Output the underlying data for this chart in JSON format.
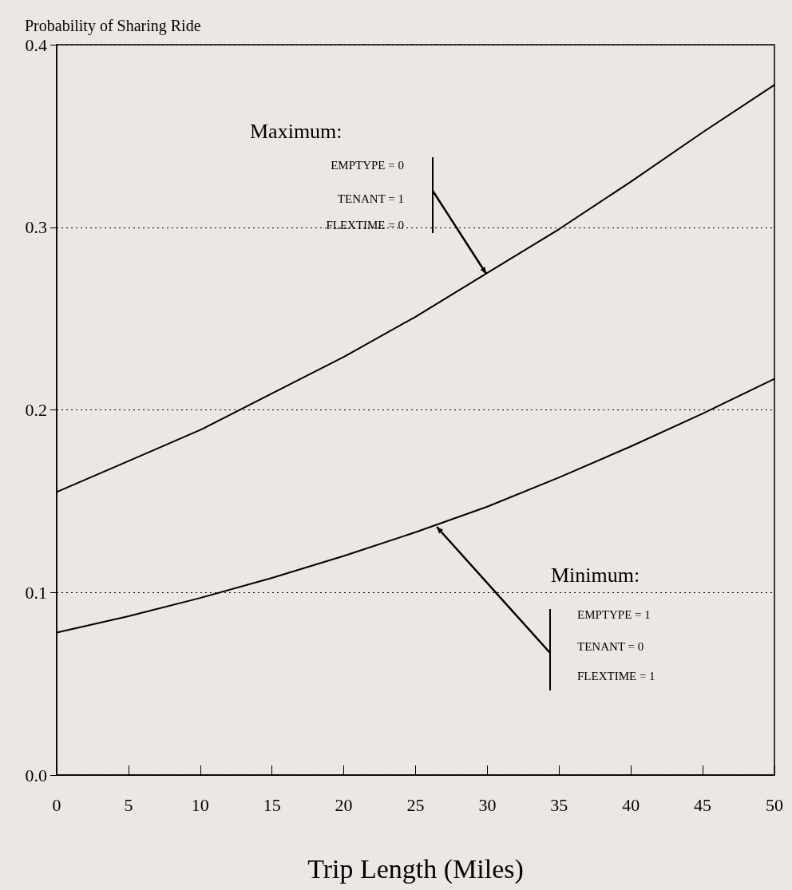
{
  "chart_data": {
    "type": "line",
    "ylabel": "Probability of Sharing Ride",
    "xlabel": "Trip Length (Miles)",
    "x": [
      0,
      5,
      10,
      15,
      20,
      25,
      30,
      35,
      40,
      45,
      50
    ],
    "series": [
      {
        "color": "#000000",
        "values": [
          0.155,
          0.172,
          0.189,
          0.209,
          0.229,
          0.251,
          0.275,
          0.299,
          0.325,
          0.352,
          0.378
        ]
      },
      {
        "color": "#000000",
        "values": [
          0.078,
          0.087,
          0.097,
          0.108,
          0.12,
          0.133,
          0.147,
          0.163,
          0.18,
          0.198,
          0.217
        ]
      }
    ],
    "xlim": [
      0,
      50
    ],
    "xticks": [
      0,
      5,
      10,
      15,
      20,
      25,
      30,
      35,
      40,
      45,
      50
    ],
    "ylim": [
      0,
      0.4
    ],
    "yticks": [
      {
        "value": 0,
        "label": "0.0"
      },
      0.1,
      0.2,
      0.3,
      0.4
    ],
    "grid": "y",
    "marker": "none",
    "line_style": "solid",
    "annotations": [
      "Maximum:",
      "EMPTYPE = 0",
      "TENANT = 1",
      "FLEXTIME = 0",
      "Minimum:",
      "EMPTYPE = 1",
      "TENANT = 0",
      "FLEXTIME = 1"
    ]
  }
}
